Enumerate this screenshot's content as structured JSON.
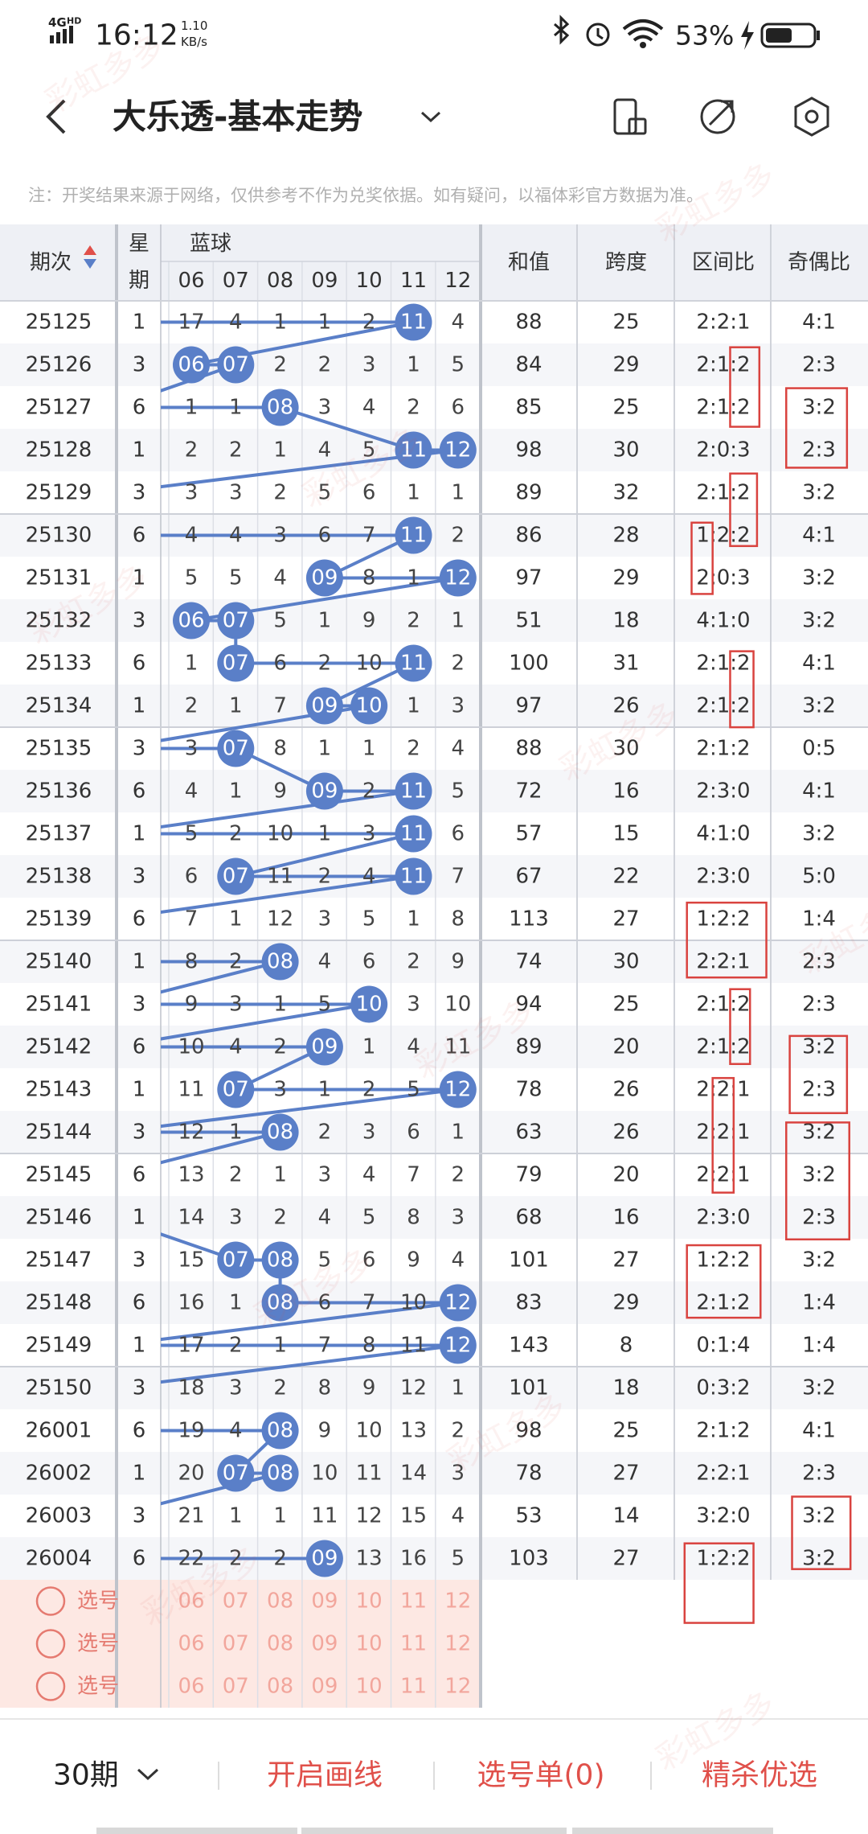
{
  "status_bar": {
    "network": "4G",
    "network_sub": "HD",
    "time": "16:12",
    "speed": "1.10",
    "speed_unit": "KB/s",
    "battery": "53%"
  },
  "header": {
    "title": "大乐透-基本走势",
    "note": "注：开奖结果来源于网络，仅供参考不作为兑奖依据。如有疑问，以福体彩官方数据为准。"
  },
  "table": {
    "headers": {
      "period": "期次",
      "weekday": [
        "星",
        "期"
      ],
      "blue": "蓝球",
      "blue_numbers": [
        "06",
        "07",
        "08",
        "09",
        "10",
        "11",
        "12"
      ],
      "sum": "和值",
      "span": "跨度",
      "zone": "区间比",
      "odd_even": "奇偶比"
    },
    "rows": [
      {
        "period": "25125",
        "weekday": 1,
        "blue": [
          17,
          4,
          1,
          1,
          2,
          "11",
          4
        ],
        "sum": 88,
        "span": 25,
        "zone": "2:2:1",
        "odd_even": "4:1"
      },
      {
        "period": "25126",
        "weekday": 3,
        "blue": [
          "06",
          "07",
          2,
          2,
          3,
          1,
          5
        ],
        "sum": 84,
        "span": 29,
        "zone": "2:1:2",
        "odd_even": "2:3"
      },
      {
        "period": "25127",
        "weekday": 6,
        "blue": [
          1,
          1,
          "08",
          3,
          4,
          2,
          6
        ],
        "sum": 85,
        "span": 25,
        "zone": "2:1:2",
        "odd_even": "3:2"
      },
      {
        "period": "25128",
        "weekday": 1,
        "blue": [
          2,
          2,
          1,
          4,
          5,
          "11",
          "12"
        ],
        "sum": 98,
        "span": 30,
        "zone": "2:0:3",
        "odd_even": "2:3"
      },
      {
        "period": "25129",
        "weekday": 3,
        "blue": [
          3,
          3,
          2,
          5,
          6,
          1,
          1
        ],
        "sum": 89,
        "span": 32,
        "zone": "2:1:2",
        "odd_even": "3:2"
      },
      {
        "period": "25130",
        "weekday": 6,
        "blue": [
          4,
          4,
          3,
          6,
          7,
          "11",
          2
        ],
        "sum": 86,
        "span": 28,
        "zone": "1:2:2",
        "odd_even": "4:1"
      },
      {
        "period": "25131",
        "weekday": 1,
        "blue": [
          5,
          5,
          4,
          "09",
          8,
          1,
          "12"
        ],
        "sum": 97,
        "span": 29,
        "zone": "2:0:3",
        "odd_even": "3:2"
      },
      {
        "period": "25132",
        "weekday": 3,
        "blue": [
          "06",
          "07",
          5,
          1,
          9,
          2,
          1
        ],
        "sum": 51,
        "span": 18,
        "zone": "4:1:0",
        "odd_even": "3:2"
      },
      {
        "period": "25133",
        "weekday": 6,
        "blue": [
          1,
          "07",
          6,
          2,
          10,
          "11",
          2
        ],
        "sum": 100,
        "span": 31,
        "zone": "2:1:2",
        "odd_even": "4:1"
      },
      {
        "period": "25134",
        "weekday": 1,
        "blue": [
          2,
          1,
          7,
          "09",
          "10",
          1,
          3
        ],
        "sum": 97,
        "span": 26,
        "zone": "2:1:2",
        "odd_even": "3:2"
      },
      {
        "period": "25135",
        "weekday": 3,
        "blue": [
          3,
          "07",
          8,
          1,
          1,
          2,
          4
        ],
        "sum": 88,
        "span": 30,
        "zone": "2:1:2",
        "odd_even": "0:5"
      },
      {
        "period": "25136",
        "weekday": 6,
        "blue": [
          4,
          1,
          9,
          "09",
          2,
          "11",
          5
        ],
        "sum": 72,
        "span": 16,
        "zone": "2:3:0",
        "odd_even": "4:1"
      },
      {
        "period": "25137",
        "weekday": 1,
        "blue": [
          5,
          2,
          10,
          1,
          3,
          "11",
          6
        ],
        "sum": 57,
        "span": 15,
        "zone": "4:1:0",
        "odd_even": "3:2"
      },
      {
        "period": "25138",
        "weekday": 3,
        "blue": [
          6,
          "07",
          11,
          2,
          4,
          "11",
          7
        ],
        "sum": 67,
        "span": 22,
        "zone": "2:3:0",
        "odd_even": "5:0"
      },
      {
        "period": "25139",
        "weekday": 6,
        "blue": [
          7,
          1,
          12,
          3,
          5,
          1,
          8
        ],
        "sum": 113,
        "span": 27,
        "zone": "1:2:2",
        "odd_even": "1:4"
      },
      {
        "period": "25140",
        "weekday": 1,
        "blue": [
          8,
          2,
          "08",
          4,
          6,
          2,
          9
        ],
        "sum": 74,
        "span": 30,
        "zone": "2:2:1",
        "odd_even": "2:3"
      },
      {
        "period": "25141",
        "weekday": 3,
        "blue": [
          9,
          3,
          1,
          5,
          "10",
          3,
          10
        ],
        "sum": 94,
        "span": 25,
        "zone": "2:1:2",
        "odd_even": "2:3"
      },
      {
        "period": "25142",
        "weekday": 6,
        "blue": [
          10,
          4,
          2,
          "09",
          1,
          4,
          11
        ],
        "sum": 89,
        "span": 20,
        "zone": "2:1:2",
        "odd_even": "3:2"
      },
      {
        "period": "25143",
        "weekday": 1,
        "blue": [
          11,
          "07",
          3,
          1,
          2,
          5,
          "12"
        ],
        "sum": 78,
        "span": 26,
        "zone": "2:2:1",
        "odd_even": "2:3"
      },
      {
        "period": "25144",
        "weekday": 3,
        "blue": [
          12,
          1,
          "08",
          2,
          3,
          6,
          1
        ],
        "sum": 63,
        "span": 26,
        "zone": "2:2:1",
        "odd_even": "3:2"
      },
      {
        "period": "25145",
        "weekday": 6,
        "blue": [
          13,
          2,
          1,
          3,
          4,
          7,
          2
        ],
        "sum": 79,
        "span": 20,
        "zone": "2:2:1",
        "odd_even": "3:2"
      },
      {
        "period": "25146",
        "weekday": 1,
        "blue": [
          14,
          3,
          2,
          4,
          5,
          8,
          3
        ],
        "sum": 68,
        "span": 16,
        "zone": "2:3:0",
        "odd_even": "2:3"
      },
      {
        "period": "25147",
        "weekday": 3,
        "blue": [
          15,
          "07",
          "08",
          5,
          6,
          9,
          4
        ],
        "sum": 101,
        "span": 27,
        "zone": "1:2:2",
        "odd_even": "3:2"
      },
      {
        "period": "25148",
        "weekday": 6,
        "blue": [
          16,
          1,
          "08",
          6,
          7,
          10,
          "12"
        ],
        "sum": 83,
        "span": 29,
        "zone": "2:1:2",
        "odd_even": "1:4"
      },
      {
        "period": "25149",
        "weekday": 1,
        "blue": [
          17,
          2,
          1,
          7,
          8,
          11,
          "12"
        ],
        "sum": 143,
        "span": 8,
        "zone": "0:1:4",
        "odd_even": "1:4"
      },
      {
        "period": "25150",
        "weekday": 3,
        "blue": [
          18,
          3,
          2,
          8,
          9,
          12,
          1
        ],
        "sum": 101,
        "span": 18,
        "zone": "0:3:2",
        "odd_even": "3:2"
      },
      {
        "period": "26001",
        "weekday": 6,
        "blue": [
          19,
          4,
          "08",
          9,
          10,
          13,
          2
        ],
        "sum": 98,
        "span": 25,
        "zone": "2:1:2",
        "odd_even": "4:1"
      },
      {
        "period": "26002",
        "weekday": 1,
        "blue": [
          20,
          "07",
          "08",
          10,
          11,
          14,
          3
        ],
        "sum": 78,
        "span": 27,
        "zone": "2:2:1",
        "odd_even": "2:3"
      },
      {
        "period": "26003",
        "weekday": 3,
        "blue": [
          21,
          1,
          1,
          11,
          12,
          15,
          4
        ],
        "sum": 53,
        "span": 14,
        "zone": "3:2:0",
        "odd_even": "3:2"
      },
      {
        "period": "26004",
        "weekday": 6,
        "blue": [
          22,
          2,
          2,
          "09",
          13,
          16,
          5
        ],
        "sum": 103,
        "span": 27,
        "zone": "1:2:2",
        "odd_even": "3:2"
      }
    ],
    "pick_rows": [
      "选号",
      "选号",
      "选号"
    ]
  },
  "bottom_bar": {
    "periods": "30期",
    "draw_lines": "开启画线",
    "pick_list": "选号单(0)",
    "premium": "精杀优选"
  },
  "watermark": "彩虹多多"
}
